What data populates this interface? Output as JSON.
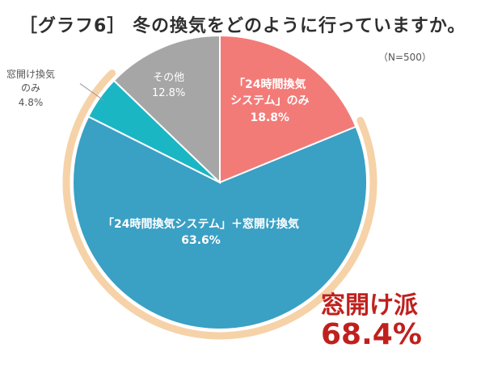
{
  "title": "［グラフ6］ 冬の換気をどのように行っていますか。",
  "note": "（N=500）",
  "chart_data": {
    "type": "pie",
    "slices": [
      {
        "name": "「24時間換気システム」のみ",
        "value": 18.8,
        "label": "18.8%",
        "color": "#f27b78"
      },
      {
        "name": "「24時間換気システム」＋窓開け換気",
        "value": 63.6,
        "label": "63.6%",
        "color": "#3aa0c4"
      },
      {
        "name": "窓開け換気のみ",
        "value": 4.8,
        "label": "4.8%",
        "color": "#1bb6c4"
      },
      {
        "name": "その他",
        "value": 12.8,
        "label": "12.8%",
        "color": "#a6a6a6"
      }
    ],
    "highlight": {
      "title": "窓開け派",
      "value": "68.4%",
      "ring_color": "#f6d2a8",
      "text_color": "#c0201d"
    }
  },
  "labels": {
    "s1_name_1": "「24時間換気",
    "s1_name_2": "システム」のみ",
    "s2_name": "「24時間換気システム」＋窓開け換気",
    "s3_name_1": "窓開け換気",
    "s3_name_2": "のみ",
    "s4_name": "その他"
  }
}
